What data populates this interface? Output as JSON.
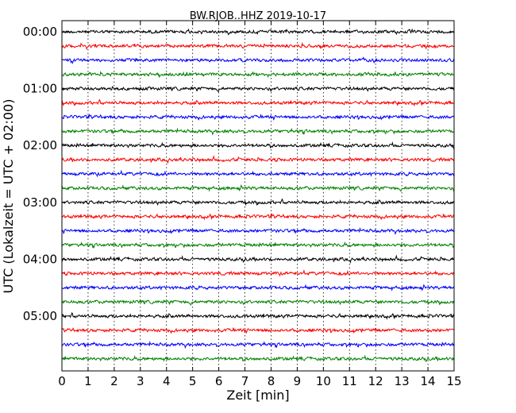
{
  "chart_data": {
    "type": "line",
    "title": "BW.RJOB..HHZ 2019-10-17",
    "xlabel": "Zeit  [min]",
    "ylabel": "UTC (Lokalzeit = UTC + 02:00)",
    "xlim": [
      0,
      15
    ],
    "x_ticks": [
      0,
      1,
      2,
      3,
      4,
      5,
      6,
      7,
      8,
      9,
      10,
      11,
      12,
      13,
      14,
      15
    ],
    "x_tick_labels": [
      "0",
      "1",
      "2",
      "3",
      "4",
      "5",
      "6",
      "7",
      "8",
      "9",
      "10",
      "11",
      "12",
      "13",
      "14",
      "15"
    ],
    "y_tick_labels": [
      "00:00",
      "01:00",
      "02:00",
      "03:00",
      "04:00",
      "05:00"
    ],
    "rows_per_hour": 4,
    "row_minutes": 15,
    "grid_vertical": "dotted",
    "colors": [
      "#000000",
      "#ff0000",
      "#0000ff",
      "#008000"
    ],
    "series": [
      {
        "start": "00:00",
        "color": "#000000"
      },
      {
        "start": "00:15",
        "color": "#ff0000"
      },
      {
        "start": "00:30",
        "color": "#0000ff"
      },
      {
        "start": "00:45",
        "color": "#008000"
      },
      {
        "start": "01:00",
        "color": "#000000"
      },
      {
        "start": "01:15",
        "color": "#ff0000"
      },
      {
        "start": "01:30",
        "color": "#0000ff"
      },
      {
        "start": "01:45",
        "color": "#008000"
      },
      {
        "start": "02:00",
        "color": "#000000"
      },
      {
        "start": "02:15",
        "color": "#ff0000"
      },
      {
        "start": "02:30",
        "color": "#0000ff"
      },
      {
        "start": "02:45",
        "color": "#008000"
      },
      {
        "start": "03:00",
        "color": "#000000"
      },
      {
        "start": "03:15",
        "color": "#ff0000"
      },
      {
        "start": "03:30",
        "color": "#0000ff"
      },
      {
        "start": "03:45",
        "color": "#008000"
      },
      {
        "start": "04:00",
        "color": "#000000"
      },
      {
        "start": "04:15",
        "color": "#ff0000"
      },
      {
        "start": "04:30",
        "color": "#0000ff"
      },
      {
        "start": "04:45",
        "color": "#008000"
      },
      {
        "start": "05:00",
        "color": "#000000"
      },
      {
        "start": "05:15",
        "color": "#ff0000"
      },
      {
        "start": "05:30",
        "color": "#0000ff"
      },
      {
        "start": "05:45",
        "color": "#008000"
      }
    ]
  }
}
